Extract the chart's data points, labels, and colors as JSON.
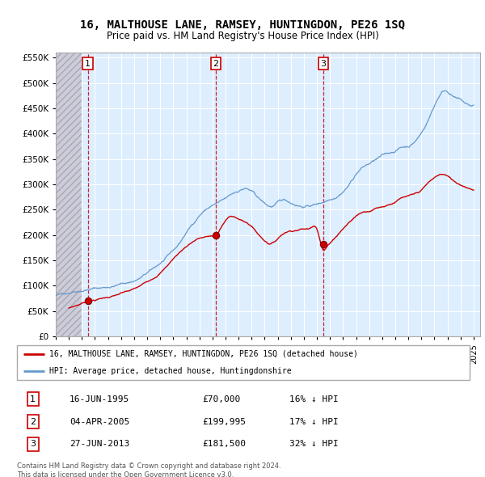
{
  "title": "16, MALTHOUSE LANE, RAMSEY, HUNTINGDON, PE26 1SQ",
  "subtitle": "Price paid vs. HM Land Registry's House Price Index (HPI)",
  "legend_label_red": "16, MALTHOUSE LANE, RAMSEY, HUNTINGDON, PE26 1SQ (detached house)",
  "legend_label_blue": "HPI: Average price, detached house, Huntingdonshire",
  "footer": "Contains HM Land Registry data © Crown copyright and database right 2024.\nThis data is licensed under the Open Government Licence v3.0.",
  "transactions": [
    {
      "num": 1,
      "date": "16-JUN-1995",
      "price": 70000,
      "rel": "16% ↓ HPI",
      "year": 1995.46
    },
    {
      "num": 2,
      "date": "04-APR-2005",
      "price": 199995,
      "rel": "17% ↓ HPI",
      "year": 2005.26
    },
    {
      "num": 3,
      "date": "27-JUN-2013",
      "price": 181500,
      "rel": "32% ↓ HPI",
      "year": 2013.49
    }
  ],
  "background_plot_color": "#ddeeff",
  "background_hatch_color": "#ccccdd",
  "grid_color": "#ffffff",
  "red_line_color": "#cc0000",
  "blue_line_color": "#6699cc",
  "vline_color": "#cc0000",
  "ylim": [
    0,
    560000
  ],
  "yticks": [
    0,
    50000,
    100000,
    150000,
    200000,
    250000,
    300000,
    350000,
    400000,
    450000,
    500000,
    550000
  ],
  "xlim_start": 1993.0,
  "xlim_end": 2025.5,
  "hatch_end": 1995.0
}
